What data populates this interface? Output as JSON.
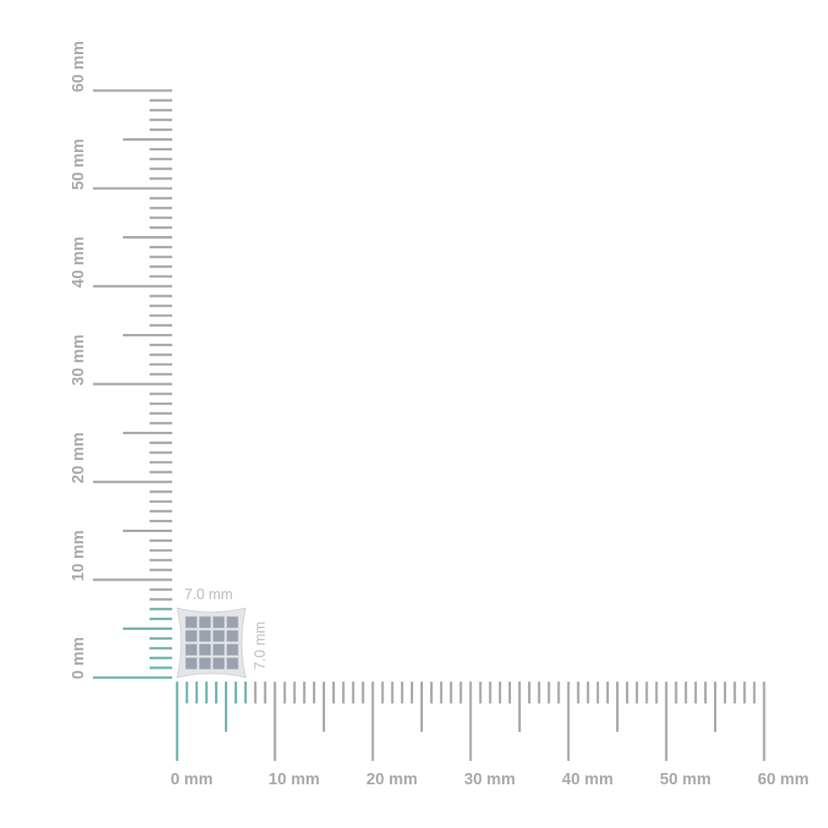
{
  "unit": "mm",
  "ruler_max": 60,
  "colors": {
    "ruler": "#a8a8a8",
    "highlight": "#6fb3ae",
    "product": "#d8dbe0"
  },
  "horizontal_ruler": {
    "labels": [
      "0 mm",
      "10 mm",
      "20 mm",
      "30 mm",
      "40 mm",
      "50 mm",
      "60 mm"
    ]
  },
  "vertical_ruler": {
    "labels": [
      "0 mm",
      "10 mm",
      "20 mm",
      "30 mm",
      "40 mm",
      "50 mm",
      "60 mm"
    ]
  },
  "product": {
    "name_icon": "square-pave-earring",
    "width_mm": 7.0,
    "height_mm": 7.0,
    "width_label": "7.0 mm",
    "height_label": "7.0 mm"
  }
}
